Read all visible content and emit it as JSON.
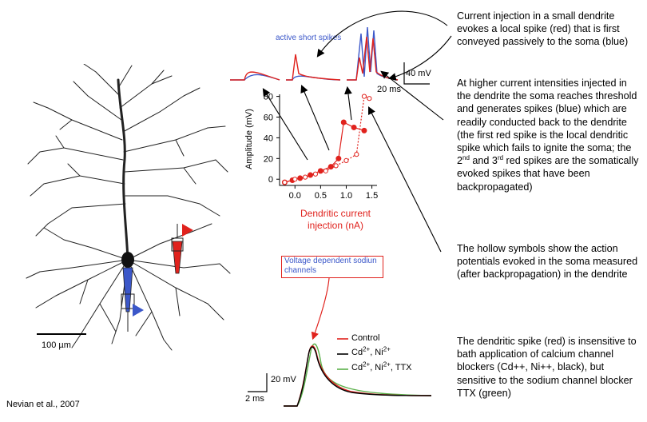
{
  "captions": {
    "p1": "Current injection in a small dendrite evokes a local spike (red) that is first conveyed passively to the soma (blue)",
    "p2_a": "At higher current intensities injected in the dendrite the soma reaches threshold and generates spikes (blue) which are readily conducted back to the dendrite (the first red spike is the local dendritic spike which fails to ignite the soma; the 2",
    "p2_sup1": "nd",
    "p2_b": " and 3",
    "p2_sup2": "rd",
    "p2_c": " red spikes are the somatically evoked spikes that have been backpropagated)",
    "p3": "The hollow symbols show the action potentials evoked in the soma measured (after backpropagation) in the dendrite",
    "p4": "The dendritic spike (red) is insensitive to bath application of calcium channel blockers (Cd++, Ni++,  black), but sensitive to the sodium channel blocker TTX (green)"
  },
  "citation": "Nevian et al., 2007",
  "neuron_scale": "100 µm",
  "top_traces": {
    "title": "active short spikes",
    "scale_v": "40 mV",
    "scale_t": "20 ms"
  },
  "amplitude_plot": {
    "ylabel": "Amplitude (mV)",
    "xlabel_line1": "Dendritic current",
    "xlabel_line2": "injection (nA)",
    "yticks": [
      "0",
      "20",
      "40",
      "60",
      "80"
    ],
    "xticks": [
      "0.0",
      "0.5",
      "1.0",
      "1.5"
    ]
  },
  "bottom_trace": {
    "box_label": "Voltage dependent sodiun channels",
    "scale_v": "20 mV",
    "scale_t": "2 ms",
    "legend": {
      "control": "Control",
      "cdni_base": "Cd",
      "cdni_sup1": "2+",
      "cdni_mid": ", Ni",
      "cdni_sup2": "2+",
      "ttx_base": "Cd",
      "ttx_sup1": "2+",
      "ttx_mid": ", Ni",
      "ttx_sup2": "2+",
      "ttx_end": ", TTX"
    }
  },
  "chart_data": {
    "type": "scatter",
    "xlabel": "Dendritic current injection (nA)",
    "ylabel": "Amplitude (mV)",
    "xlim": [
      -0.3,
      1.6
    ],
    "ylim": [
      -6,
      82
    ],
    "series": [
      {
        "marker": "filled",
        "color": "#e0221d",
        "x": [
          -0.2,
          -0.05,
          0.1,
          0.3,
          0.5,
          0.7,
          0.85,
          0.95,
          1.15,
          1.35
        ],
        "y": [
          -3,
          -1,
          1,
          4,
          8,
          12,
          20,
          55,
          50,
          47
        ]
      },
      {
        "marker": "hollow",
        "color": "#e0221d",
        "x": [
          -0.2,
          0.0,
          0.2,
          0.4,
          0.6,
          0.8,
          1.0,
          1.2,
          1.35,
          1.45
        ],
        "y": [
          -3,
          0,
          2,
          5,
          8,
          13,
          18,
          24,
          80,
          78
        ]
      }
    ]
  },
  "colors": {
    "red": "#e0221d",
    "blue": "#3b57c9",
    "green": "#5bb04a",
    "black": "#000000"
  }
}
